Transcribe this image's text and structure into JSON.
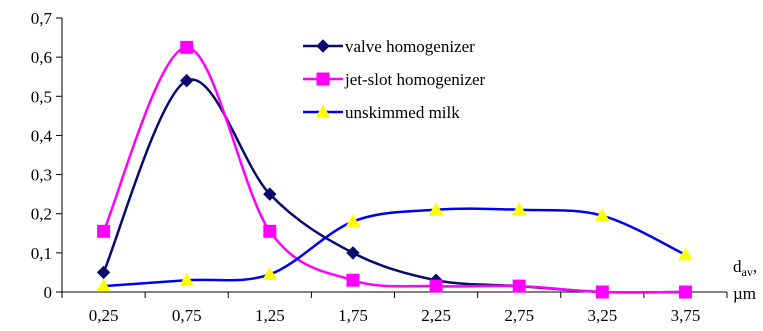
{
  "chart_data": {
    "type": "line",
    "title": "",
    "xlabel": "",
    "ylabel": "",
    "x_unit_label": {
      "main": "d",
      "sub": "av",
      "suffix": ",",
      "unit": "µm"
    },
    "categories": [
      "0,25",
      "0,75",
      "1,25",
      "1,75",
      "2,25",
      "2,75",
      "3,25",
      "3,75"
    ],
    "x": [
      0.25,
      0.75,
      1.25,
      1.75,
      2.25,
      2.75,
      3.25,
      3.75
    ],
    "ylim": [
      0,
      0.7
    ],
    "yticks": [
      0,
      0.1,
      0.2,
      0.3,
      0.4,
      0.5,
      0.6,
      0.7
    ],
    "ytick_labels": [
      "0",
      "0,1",
      "0,2",
      "0,3",
      "0,4",
      "0,5",
      "0,6",
      "0,7"
    ],
    "grid": false,
    "smooth": true,
    "legend": {
      "placement": "top-right"
    },
    "series": [
      {
        "name": "valve homogenizer",
        "color": "#0a0a6e",
        "marker": "diamond",
        "values": [
          0.05,
          0.54,
          0.25,
          0.1,
          0.03,
          0.015,
          0.0,
          0.0
        ]
      },
      {
        "name": "jet-slot homogenizer",
        "color": "#ff00ff",
        "marker": "square",
        "values": [
          0.155,
          0.625,
          0.155,
          0.03,
          0.015,
          0.015,
          0.0,
          0.0
        ]
      },
      {
        "name": "unskimmed milk",
        "color": "#0000ee",
        "marker": "triangle",
        "marker_color": "#ffff00",
        "values": [
          0.015,
          0.03,
          0.045,
          0.18,
          0.21,
          0.21,
          0.195,
          0.095
        ]
      }
    ]
  }
}
